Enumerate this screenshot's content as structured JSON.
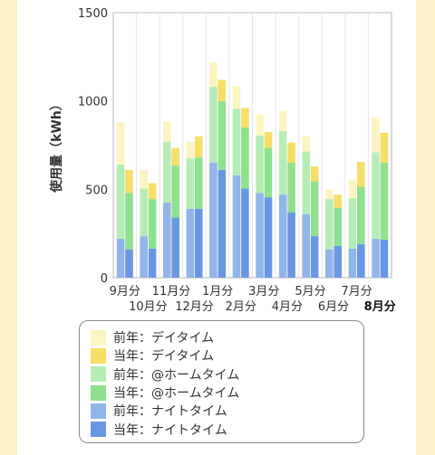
{
  "chart_data": {
    "type": "bar",
    "stacked": true,
    "ylabel": "使用量（kWh）",
    "ylim": [
      0,
      1500
    ],
    "yticks": [
      0,
      500,
      1000,
      1500
    ],
    "grid": "vertical",
    "categories": [
      "9月分",
      "10月分",
      "11月分",
      "12月分",
      "1月分",
      "2月分",
      "3月分",
      "4月分",
      "5月分",
      "6月分",
      "7月分",
      "8月分"
    ],
    "highlight_category": "8月分",
    "tick_labels_upper": [
      "9月分",
      "11月分",
      "1月分",
      "3月分",
      "5月分",
      "7月分"
    ],
    "tick_labels_lower": [
      "10月分",
      "12月分",
      "2月分",
      "4月分",
      "6月分",
      "8月分"
    ],
    "series": [
      {
        "name": "前年：ナイトタイム",
        "color": "#91b4ea",
        "stack": "prev",
        "values": [
          220,
          235,
          425,
          390,
          650,
          580,
          480,
          470,
          360,
          160,
          165,
          220
        ]
      },
      {
        "name": "前年：@ホームタイム",
        "color": "#b6edb6",
        "stack": "prev",
        "values": [
          420,
          270,
          345,
          285,
          430,
          375,
          325,
          360,
          355,
          285,
          285,
          490
        ]
      },
      {
        "name": "前年：デイタイム",
        "color": "#fcf5c2",
        "stack": "prev",
        "values": [
          240,
          105,
          115,
          95,
          140,
          130,
          120,
          115,
          85,
          55,
          105,
          200
        ]
      },
      {
        "name": "当年：ナイトタイム",
        "color": "#6a97e3",
        "stack": "curr",
        "values": [
          160,
          165,
          340,
          390,
          610,
          505,
          455,
          370,
          235,
          180,
          190,
          215
        ]
      },
      {
        "name": "当年：@ホームタイム",
        "color": "#8fe08f",
        "stack": "curr",
        "values": [
          320,
          280,
          295,
          290,
          390,
          345,
          280,
          280,
          310,
          215,
          325,
          435
        ]
      },
      {
        "name": "当年：デイタイム",
        "color": "#f6de68",
        "stack": "curr",
        "values": [
          130,
          90,
          100,
          120,
          120,
          110,
          90,
          115,
          85,
          75,
          140,
          170
        ]
      }
    ]
  },
  "legend": {
    "items": [
      {
        "label": "前年：デイタイム",
        "color": "#fcf5c2"
      },
      {
        "label": "当年：デイタイム",
        "color": "#f6de68"
      },
      {
        "label": "前年：@ホームタイム",
        "color": "#b6edb6"
      },
      {
        "label": "当年：@ホームタイム",
        "color": "#8fe08f"
      },
      {
        "label": "前年：ナイトタイム",
        "color": "#91b4ea"
      },
      {
        "label": "当年：ナイトタイム",
        "color": "#6a97e3"
      }
    ]
  }
}
